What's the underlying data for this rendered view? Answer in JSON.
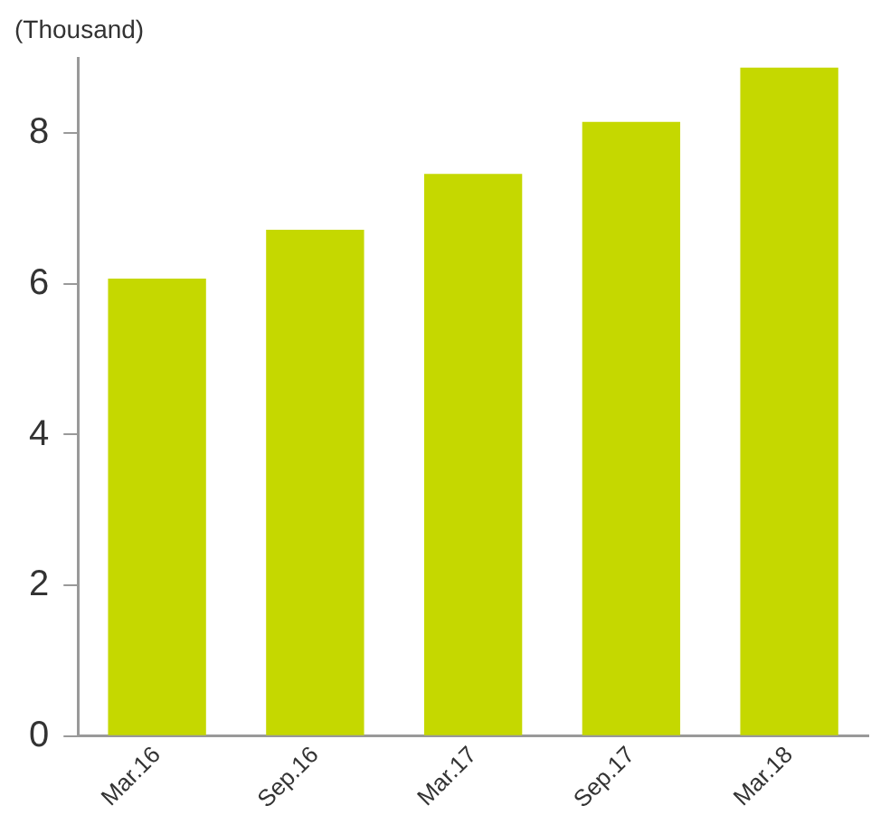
{
  "chart_data": {
    "type": "bar",
    "ylabel": "(Thousand)",
    "categories": [
      "Mar.16",
      "Sep.16",
      "Mar.17",
      "Sep.17",
      "Mar.18"
    ],
    "values": [
      6.07,
      6.72,
      7.46,
      8.15,
      8.87
    ],
    "color": "#c5d800",
    "ylim": [
      0,
      9
    ],
    "yticks": [
      0,
      2,
      4,
      6,
      8
    ],
    "grid": false,
    "legend": false
  }
}
